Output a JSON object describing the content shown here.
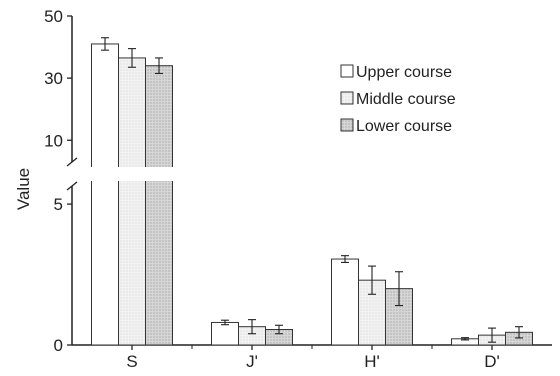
{
  "chart_data": {
    "type": "bar",
    "categories": [
      "S",
      "J'",
      "H'",
      "D'"
    ],
    "ylabel": "Value",
    "axis_break": true,
    "y_ticks_upper": [
      10,
      30,
      50
    ],
    "y_ticks_lower": [
      0,
      5
    ],
    "ylim_upper": [
      3,
      50
    ],
    "ylim_lower": [
      0,
      5.5
    ],
    "legend_position": "top-right",
    "grid": false,
    "series": [
      {
        "name": "Upper course",
        "fill": "plain",
        "values": [
          41,
          0.8,
          3.05,
          0.22
        ],
        "errors": [
          2,
          0.08,
          0.12,
          0.04
        ]
      },
      {
        "name": "Middle course",
        "fill": "light-dotted",
        "values": [
          36.5,
          0.65,
          2.3,
          0.35
        ],
        "errors": [
          3,
          0.25,
          0.5,
          0.25
        ]
      },
      {
        "name": "Lower course",
        "fill": "gray-dotted",
        "values": [
          34,
          0.55,
          2.0,
          0.45
        ],
        "errors": [
          2.5,
          0.15,
          0.6,
          0.2
        ]
      }
    ]
  },
  "colors": {
    "axis": "#222222",
    "bar_stroke": "#333333",
    "plain_fill": "#ffffff",
    "light_fill": "#efefef",
    "gray_fill": "#d2d2d2"
  }
}
